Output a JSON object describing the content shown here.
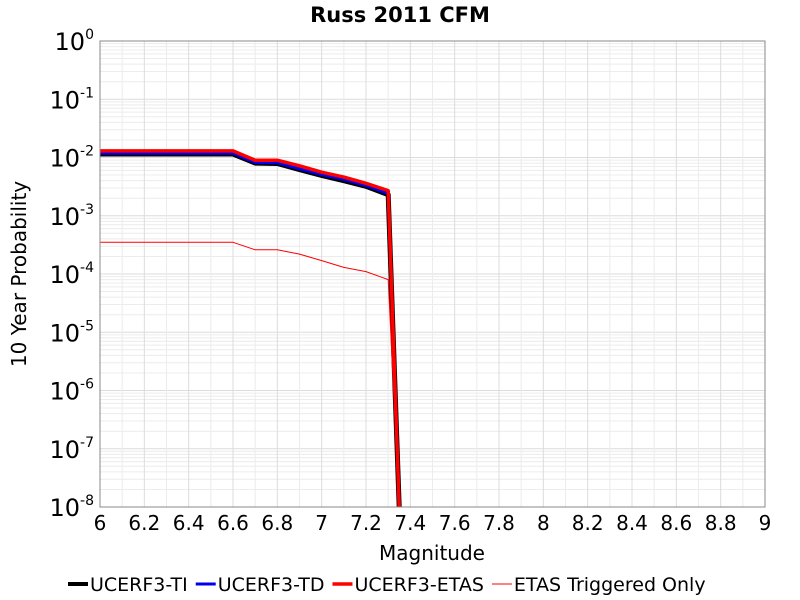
{
  "chart_data": {
    "type": "line",
    "title": "Russ 2011 CFM",
    "xlabel": "Magnitude",
    "ylabel": "10 Year Probability",
    "xlim": [
      6,
      9
    ],
    "ylim": [
      1e-08,
      1
    ],
    "yscale": "log",
    "grid": true,
    "legend_position": "bottom",
    "x_ticks": [
      "6",
      "6.2",
      "6.4",
      "6.6",
      "6.8",
      "7",
      "7.2",
      "7.4",
      "7.6",
      "7.8",
      "8",
      "8.2",
      "8.4",
      "8.6",
      "8.8",
      "9"
    ],
    "y_ticks": [
      {
        "base": "10",
        "exp": "0"
      },
      {
        "base": "10",
        "exp": "-1"
      },
      {
        "base": "10",
        "exp": "-2"
      },
      {
        "base": "10",
        "exp": "-3"
      },
      {
        "base": "10",
        "exp": "-4"
      },
      {
        "base": "10",
        "exp": "-5"
      },
      {
        "base": "10",
        "exp": "-6"
      },
      {
        "base": "10",
        "exp": "-7"
      },
      {
        "base": "10",
        "exp": "-8"
      }
    ],
    "series": [
      {
        "name": "UCERF3-TI",
        "color": "#000000",
        "x": [
          6.0,
          6.6,
          6.7,
          6.8,
          6.9,
          7.0,
          7.1,
          7.2,
          7.3,
          7.35
        ],
        "y": [
          0.0115,
          0.0115,
          0.008,
          0.0079,
          0.0062,
          0.0049,
          0.004,
          0.0032,
          0.0023,
          1e-08
        ]
      },
      {
        "name": "UCERF3-TD",
        "color": "#0000ee",
        "x": [
          6.0,
          6.6,
          6.7,
          6.8,
          6.9,
          7.0,
          7.1,
          7.2,
          7.3,
          7.35
        ],
        "y": [
          0.0118,
          0.0118,
          0.0082,
          0.0081,
          0.0064,
          0.0051,
          0.0042,
          0.0033,
          0.0024,
          1e-08
        ]
      },
      {
        "name": "UCERF3-ETAS",
        "color": "#ff0000",
        "x": [
          6.0,
          6.6,
          6.7,
          6.8,
          6.9,
          7.0,
          7.1,
          7.2,
          7.3,
          7.35
        ],
        "y": [
          0.013,
          0.013,
          0.009,
          0.009,
          0.0072,
          0.0056,
          0.0046,
          0.0036,
          0.0027,
          1e-08
        ]
      },
      {
        "name": "ETAS Triggered Only",
        "color": "#ff0000",
        "x": [
          6.0,
          6.6,
          6.7,
          6.8,
          6.9,
          7.0,
          7.1,
          7.2,
          7.3,
          7.35
        ],
        "y": [
          0.00035,
          0.00035,
          0.00026,
          0.00026,
          0.00022,
          0.00017,
          0.00013,
          0.00011,
          8e-05,
          1e-08
        ]
      }
    ]
  }
}
